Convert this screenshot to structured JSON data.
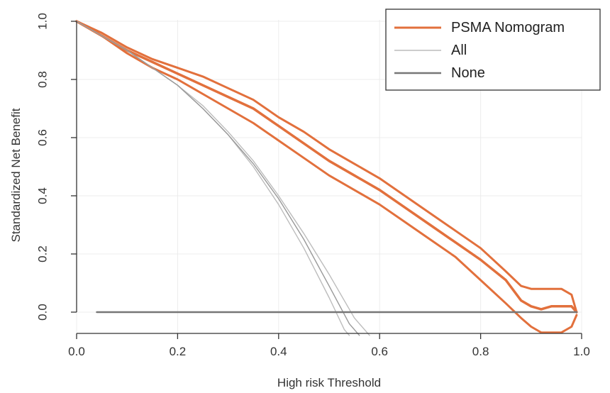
{
  "chart_data": {
    "type": "line",
    "title": "",
    "xlabel": "High risk Threshold",
    "ylabel": "Standardized Net Benefit",
    "xlim": [
      0.0,
      1.0
    ],
    "ylim": [
      -0.08,
      1.0
    ],
    "xticks": [
      0.0,
      0.2,
      0.4,
      0.6,
      0.8,
      1.0
    ],
    "xtick_labels": [
      "0.0",
      "0.2",
      "0.4",
      "0.6",
      "0.8",
      "1.0"
    ],
    "yticks": [
      0.0,
      0.2,
      0.4,
      0.6,
      0.8,
      1.0
    ],
    "ytick_labels": [
      "0.0",
      "0.2",
      "0.4",
      "0.6",
      "0.8",
      "1.0"
    ],
    "grid": true,
    "legend": {
      "placement": "top-right",
      "entries": [
        {
          "label": "PSMA Nomogram",
          "color": "#e2703c"
        },
        {
          "label": "All",
          "color": "#bcbcbc"
        },
        {
          "label": "None",
          "color": "#777777"
        }
      ]
    },
    "series": [
      {
        "name": "PSMA Nomogram",
        "role": "estimate",
        "color": "#e2703c",
        "x": [
          0.0,
          0.05,
          0.1,
          0.15,
          0.2,
          0.25,
          0.3,
          0.35,
          0.4,
          0.45,
          0.5,
          0.55,
          0.6,
          0.65,
          0.7,
          0.75,
          0.8,
          0.85,
          0.88,
          0.9,
          0.92,
          0.94,
          0.96,
          0.98,
          0.99
        ],
        "y": [
          1.0,
          0.95,
          0.9,
          0.86,
          0.82,
          0.78,
          0.74,
          0.7,
          0.64,
          0.58,
          0.52,
          0.47,
          0.42,
          0.36,
          0.3,
          0.24,
          0.18,
          0.11,
          0.04,
          0.02,
          0.01,
          0.02,
          0.02,
          0.02,
          0.0
        ]
      },
      {
        "name": "PSMA Nomogram",
        "role": "upper",
        "color": "#e2703c",
        "x": [
          0.0,
          0.05,
          0.1,
          0.15,
          0.2,
          0.25,
          0.3,
          0.35,
          0.4,
          0.45,
          0.5,
          0.55,
          0.6,
          0.65,
          0.7,
          0.75,
          0.8,
          0.85,
          0.88,
          0.9,
          0.92,
          0.94,
          0.96,
          0.98,
          0.99
        ],
        "y": [
          1.0,
          0.96,
          0.91,
          0.87,
          0.84,
          0.81,
          0.77,
          0.73,
          0.67,
          0.62,
          0.56,
          0.51,
          0.46,
          0.4,
          0.34,
          0.28,
          0.22,
          0.14,
          0.09,
          0.08,
          0.08,
          0.08,
          0.08,
          0.06,
          0.0
        ]
      },
      {
        "name": "PSMA Nomogram",
        "role": "lower",
        "color": "#e2703c",
        "x": [
          0.0,
          0.05,
          0.1,
          0.15,
          0.2,
          0.25,
          0.3,
          0.35,
          0.4,
          0.45,
          0.5,
          0.55,
          0.6,
          0.65,
          0.7,
          0.75,
          0.8,
          0.85,
          0.88,
          0.9,
          0.92,
          0.94,
          0.96,
          0.98,
          0.99
        ],
        "y": [
          1.0,
          0.95,
          0.89,
          0.84,
          0.8,
          0.75,
          0.7,
          0.65,
          0.59,
          0.53,
          0.47,
          0.42,
          0.37,
          0.31,
          0.25,
          0.19,
          0.11,
          0.03,
          -0.02,
          -0.05,
          -0.07,
          -0.07,
          -0.07,
          -0.05,
          -0.01
        ]
      },
      {
        "name": "All",
        "color": "#bcbcbc",
        "x": [
          0.0,
          0.05,
          0.1,
          0.15,
          0.2,
          0.25,
          0.3,
          0.35,
          0.4,
          0.45,
          0.5,
          0.55,
          0.58
        ],
        "y": [
          1.0,
          0.95,
          0.9,
          0.84,
          0.78,
          0.71,
          0.62,
          0.52,
          0.4,
          0.27,
          0.13,
          -0.02,
          -0.08
        ]
      },
      {
        "name": "All",
        "color": "#bcbcbc",
        "x": [
          0.0,
          0.05,
          0.1,
          0.15,
          0.2,
          0.25,
          0.3,
          0.35,
          0.4,
          0.45,
          0.5,
          0.53,
          0.54
        ],
        "y": [
          1.0,
          0.95,
          0.9,
          0.84,
          0.78,
          0.7,
          0.61,
          0.5,
          0.37,
          0.22,
          0.05,
          -0.06,
          -0.08
        ]
      },
      {
        "name": "All",
        "color": "#999999",
        "x": [
          0.0,
          0.05,
          0.1,
          0.15,
          0.2,
          0.25,
          0.3,
          0.35,
          0.4,
          0.45,
          0.5,
          0.54,
          0.56
        ],
        "y": [
          1.0,
          0.95,
          0.9,
          0.84,
          0.78,
          0.7,
          0.61,
          0.51,
          0.39,
          0.25,
          0.09,
          -0.04,
          -0.08
        ]
      },
      {
        "name": "None",
        "color": "#777777",
        "x": [
          0.04,
          0.99
        ],
        "y": [
          0.0,
          0.0
        ]
      }
    ]
  }
}
